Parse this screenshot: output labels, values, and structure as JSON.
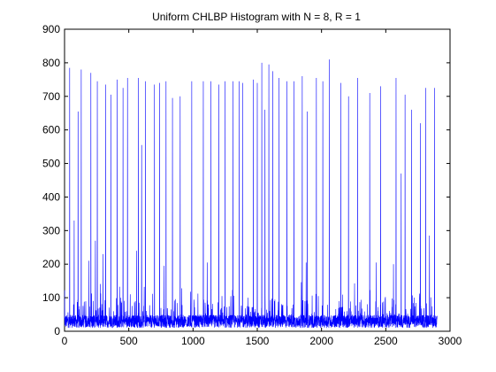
{
  "chart_data": {
    "type": "line",
    "title": "Uniform CHLBP Histogram with N = 8, R = 1",
    "xlabel": "",
    "ylabel": "",
    "xlim": [
      0,
      3000
    ],
    "ylim": [
      0,
      900
    ],
    "x_ticks": [
      "0",
      "500",
      "1000",
      "1500",
      "2000",
      "2500",
      "3000"
    ],
    "y_ticks": [
      "0",
      "100",
      "200",
      "300",
      "400",
      "500",
      "600",
      "700",
      "800",
      "900"
    ],
    "grid": false,
    "legend": "none",
    "series": [
      {
        "color": "#0000ff",
        "n_points": 2900,
        "baseline_range": [
          10,
          80
        ],
        "peaks": [
          {
            "x": 40,
            "y": 785
          },
          {
            "x": 75,
            "y": 330
          },
          {
            "x": 105,
            "y": 655
          },
          {
            "x": 130,
            "y": 780
          },
          {
            "x": 190,
            "y": 210
          },
          {
            "x": 205,
            "y": 770
          },
          {
            "x": 240,
            "y": 270
          },
          {
            "x": 255,
            "y": 745
          },
          {
            "x": 300,
            "y": 230
          },
          {
            "x": 320,
            "y": 735
          },
          {
            "x": 360,
            "y": 705
          },
          {
            "x": 410,
            "y": 750
          },
          {
            "x": 455,
            "y": 725
          },
          {
            "x": 490,
            "y": 755
          },
          {
            "x": 560,
            "y": 240
          },
          {
            "x": 575,
            "y": 755
          },
          {
            "x": 600,
            "y": 555
          },
          {
            "x": 630,
            "y": 745
          },
          {
            "x": 700,
            "y": 735
          },
          {
            "x": 740,
            "y": 740
          },
          {
            "x": 775,
            "y": 195
          },
          {
            "x": 790,
            "y": 745
          },
          {
            "x": 840,
            "y": 695
          },
          {
            "x": 900,
            "y": 700
          },
          {
            "x": 990,
            "y": 745
          },
          {
            "x": 1080,
            "y": 745
          },
          {
            "x": 1110,
            "y": 205
          },
          {
            "x": 1140,
            "y": 745
          },
          {
            "x": 1200,
            "y": 735
          },
          {
            "x": 1250,
            "y": 745
          },
          {
            "x": 1310,
            "y": 745
          },
          {
            "x": 1360,
            "y": 745
          },
          {
            "x": 1385,
            "y": 740
          },
          {
            "x": 1470,
            "y": 750
          },
          {
            "x": 1500,
            "y": 740
          },
          {
            "x": 1535,
            "y": 800
          },
          {
            "x": 1560,
            "y": 660
          },
          {
            "x": 1590,
            "y": 795
          },
          {
            "x": 1620,
            "y": 775
          },
          {
            "x": 1670,
            "y": 755
          },
          {
            "x": 1730,
            "y": 745
          },
          {
            "x": 1785,
            "y": 745
          },
          {
            "x": 1850,
            "y": 760
          },
          {
            "x": 1880,
            "y": 205
          },
          {
            "x": 1890,
            "y": 655
          },
          {
            "x": 1960,
            "y": 755
          },
          {
            "x": 2010,
            "y": 745
          },
          {
            "x": 2060,
            "y": 810
          },
          {
            "x": 2150,
            "y": 740
          },
          {
            "x": 2210,
            "y": 700
          },
          {
            "x": 2280,
            "y": 755
          },
          {
            "x": 2375,
            "y": 710
          },
          {
            "x": 2425,
            "y": 205
          },
          {
            "x": 2460,
            "y": 730
          },
          {
            "x": 2560,
            "y": 200
          },
          {
            "x": 2580,
            "y": 755
          },
          {
            "x": 2620,
            "y": 470
          },
          {
            "x": 2650,
            "y": 705
          },
          {
            "x": 2700,
            "y": 660
          },
          {
            "x": 2770,
            "y": 620
          },
          {
            "x": 2810,
            "y": 725
          },
          {
            "x": 2840,
            "y": 285
          },
          {
            "x": 2880,
            "y": 725
          }
        ]
      }
    ]
  }
}
